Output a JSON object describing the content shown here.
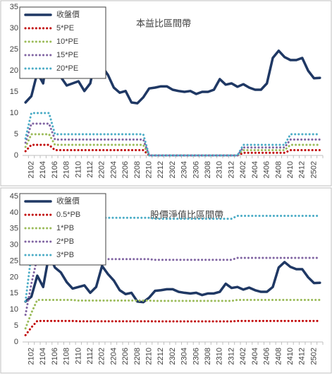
{
  "chart_data": [
    {
      "type": "line",
      "title": "本益比區間帶",
      "categories": [
        null,
        "2102",
        null,
        "2104",
        null,
        "2106",
        null,
        "2108",
        null,
        "2110",
        null,
        "2112",
        null,
        "2202",
        null,
        "2204",
        null,
        "2206",
        null,
        "2208",
        null,
        "2210",
        null,
        "2212",
        null,
        "2302",
        null,
        "2304",
        null,
        "2306",
        null,
        "2308",
        null,
        "2310",
        null,
        "2312",
        null,
        "2402",
        null,
        "2404",
        null,
        "2406",
        null,
        "2408",
        null,
        "2410",
        null,
        "2412",
        null,
        "2502",
        null
      ],
      "ylim": [
        0,
        35
      ],
      "yticks": [
        0,
        5,
        10,
        15,
        20,
        25,
        30,
        35
      ],
      "grid": false,
      "series": [
        {
          "name": "收盤價",
          "color": "#1f3864",
          "style": "solid",
          "values": [
            12.5,
            14,
            19.5,
            17,
            27,
            20,
            18.5,
            16.5,
            17,
            17.5,
            15.2,
            17,
            23.5,
            21,
            19,
            16,
            14.8,
            15.2,
            12.5,
            12.3,
            13.7,
            15.8,
            16,
            16.3,
            16.3,
            15.5,
            15.2,
            15,
            15.2,
            14.5,
            15,
            15,
            15.5,
            18,
            16.7,
            17,
            16.2,
            16.8,
            16,
            15.5,
            15.5,
            17,
            23,
            24.7,
            23.2,
            22.5,
            22.5,
            23,
            20,
            18.2,
            18.3
          ]
        },
        {
          "name": "5*PE",
          "color": "#c00000",
          "style": "dotted",
          "values": [
            1,
            2.5,
            2.5,
            2.5,
            2.5,
            1.25,
            1.25,
            1.25,
            1.25,
            1.25,
            1.25,
            1.25,
            1.25,
            1.25,
            1.25,
            1.25,
            1.25,
            1.25,
            1.25,
            1.25,
            1.25,
            0,
            0,
            0,
            0,
            0,
            0,
            0,
            0,
            0,
            0,
            0,
            0,
            0,
            0,
            0,
            0,
            0.625,
            0.625,
            0.625,
            0.625,
            0.625,
            0.625,
            0.625,
            0.625,
            1.25,
            1.25,
            1.25,
            1.25,
            1.25,
            1.25
          ]
        },
        {
          "name": "10*PE",
          "color": "#9bbb59",
          "style": "dotted",
          "values": [
            2,
            5,
            5,
            5,
            5,
            2.5,
            2.5,
            2.5,
            2.5,
            2.5,
            2.5,
            2.5,
            2.5,
            2.5,
            2.5,
            2.5,
            2.5,
            2.5,
            2.5,
            2.5,
            2.5,
            0,
            0,
            0,
            0,
            0,
            0,
            0,
            0,
            0,
            0,
            0,
            0,
            0,
            0,
            0,
            0,
            1.25,
            1.25,
            1.25,
            1.25,
            1.25,
            1.25,
            1.25,
            1.25,
            2.5,
            2.5,
            2.5,
            2.5,
            2.5,
            2.5
          ]
        },
        {
          "name": "15*PE",
          "color": "#8064a2",
          "style": "dotted",
          "values": [
            3,
            7.5,
            7.5,
            7.5,
            7.5,
            3.75,
            3.75,
            3.75,
            3.75,
            3.75,
            3.75,
            3.75,
            3.75,
            3.75,
            3.75,
            3.75,
            3.75,
            3.75,
            3.75,
            3.75,
            3.75,
            0,
            0,
            0,
            0,
            0,
            0,
            0,
            0,
            0,
            0,
            0,
            0,
            0,
            0,
            0,
            0,
            1.875,
            1.875,
            1.875,
            1.875,
            1.875,
            1.875,
            1.875,
            1.875,
            3.75,
            3.75,
            3.75,
            3.75,
            3.75,
            3.75
          ]
        },
        {
          "name": "20*PE",
          "color": "#4bacc6",
          "style": "dotted",
          "values": [
            4,
            10,
            10,
            10,
            10,
            5,
            5,
            5,
            5,
            5,
            5,
            5,
            5,
            5,
            5,
            5,
            5,
            5,
            5,
            5,
            5,
            0,
            0,
            0,
            0,
            0,
            0,
            0,
            0,
            0,
            0,
            0,
            0,
            0,
            0,
            0,
            0,
            2.5,
            2.5,
            2.5,
            2.5,
            2.5,
            2.5,
            2.5,
            2.5,
            5,
            5,
            5,
            5,
            5,
            5
          ]
        }
      ]
    },
    {
      "type": "line",
      "title": "股價淨值比區間帶",
      "categories": [
        null,
        "2102",
        null,
        "2104",
        null,
        "2106",
        null,
        "2108",
        null,
        "2110",
        null,
        "2112",
        null,
        "2202",
        null,
        "2204",
        null,
        "2206",
        null,
        "2208",
        null,
        "2210",
        null,
        "2212",
        null,
        "2302",
        null,
        "2304",
        null,
        "2306",
        null,
        "2308",
        null,
        "2310",
        null,
        "2312",
        null,
        "2402",
        null,
        "2404",
        null,
        "2406",
        null,
        "2408",
        null,
        "2410",
        null,
        "2412",
        null,
        "2502",
        null
      ],
      "ylim": [
        0,
        45
      ],
      "yticks": [
        0,
        5,
        10,
        15,
        20,
        25,
        30,
        35,
        40,
        45
      ],
      "grid": false,
      "series": [
        {
          "name": "收盤價",
          "color": "#1f3864",
          "style": "solid",
          "values": [
            12.5,
            14,
            20.5,
            17,
            27,
            23,
            21.5,
            18.5,
            16.5,
            17,
            17.5,
            15.2,
            17,
            23.5,
            21,
            19,
            16,
            14.8,
            15.2,
            12.5,
            12.3,
            13.7,
            15.8,
            16,
            16.3,
            16.3,
            15.5,
            15.2,
            15,
            15.2,
            14.5,
            15,
            15,
            15.5,
            18,
            16.7,
            17,
            16.2,
            16.8,
            16,
            15.5,
            15.5,
            17,
            23,
            24.7,
            23.2,
            22.5,
            22.5,
            20,
            18.2,
            18.3
          ]
        },
        {
          "name": "0.5*PB",
          "color": "#c00000",
          "style": "dotted",
          "values": [
            2.1,
            4.5,
            6.5,
            6.5,
            6.5,
            6.5,
            6.5,
            6.5,
            6.5,
            6.4,
            6.4,
            6.4,
            6.4,
            6.4,
            6.4,
            6.4,
            6.4,
            6.4,
            6.4,
            6.4,
            6.4,
            6.4,
            6.35,
            6.35,
            6.35,
            6.35,
            6.35,
            6.35,
            6.35,
            6.35,
            6.35,
            6.35,
            6.35,
            6.35,
            6.35,
            6.35,
            6.5,
            6.5,
            6.5,
            6.5,
            6.5,
            6.5,
            6.5,
            6.5,
            6.5,
            6.5,
            6.5,
            6.5,
            6.5,
            6.5,
            6.5
          ]
        },
        {
          "name": "1*PB",
          "color": "#9bbb59",
          "style": "dotted",
          "values": [
            4.2,
            9,
            13,
            13,
            13,
            13,
            13,
            13,
            13,
            12.8,
            12.8,
            12.8,
            12.8,
            12.8,
            12.8,
            12.8,
            12.8,
            12.8,
            12.8,
            12.8,
            12.8,
            12.8,
            12.7,
            12.7,
            12.7,
            12.7,
            12.7,
            12.7,
            12.7,
            12.7,
            12.7,
            12.7,
            12.7,
            12.7,
            12.7,
            12.7,
            13,
            13,
            13,
            13,
            13,
            13,
            13,
            13,
            13,
            13,
            13,
            13,
            13,
            13,
            13
          ]
        },
        {
          "name": "2*PB",
          "color": "#8064a2",
          "style": "dotted",
          "values": [
            8.4,
            18,
            26,
            26,
            26,
            26,
            26,
            26,
            26,
            25.6,
            25.6,
            25.6,
            25.6,
            25.6,
            25.6,
            25.6,
            25.6,
            25.6,
            25.6,
            25.6,
            25.6,
            25.6,
            25.4,
            25.4,
            25.4,
            25.4,
            25.4,
            25.4,
            25.4,
            25.4,
            25.4,
            25.4,
            25.4,
            25.4,
            25.4,
            25.4,
            26,
            26,
            26,
            26,
            26,
            26,
            26,
            26,
            26,
            26,
            26,
            26,
            26,
            26,
            26
          ]
        },
        {
          "name": "3*PB",
          "color": "#4bacc6",
          "style": "dotted",
          "values": [
            12.6,
            27,
            39,
            39,
            39,
            39,
            39,
            39,
            39,
            38.4,
            38.4,
            38.4,
            38.4,
            38.4,
            38.4,
            38.4,
            38.4,
            38.4,
            38.4,
            38.4,
            38.4,
            38.4,
            38.1,
            38.1,
            38.1,
            38.1,
            38.1,
            38.1,
            38.1,
            38.1,
            38.1,
            38.1,
            38.1,
            38.1,
            38.1,
            38.1,
            39,
            39,
            39,
            39,
            39,
            39,
            39,
            39,
            39,
            39,
            39,
            39,
            39,
            39,
            39
          ]
        }
      ]
    }
  ]
}
